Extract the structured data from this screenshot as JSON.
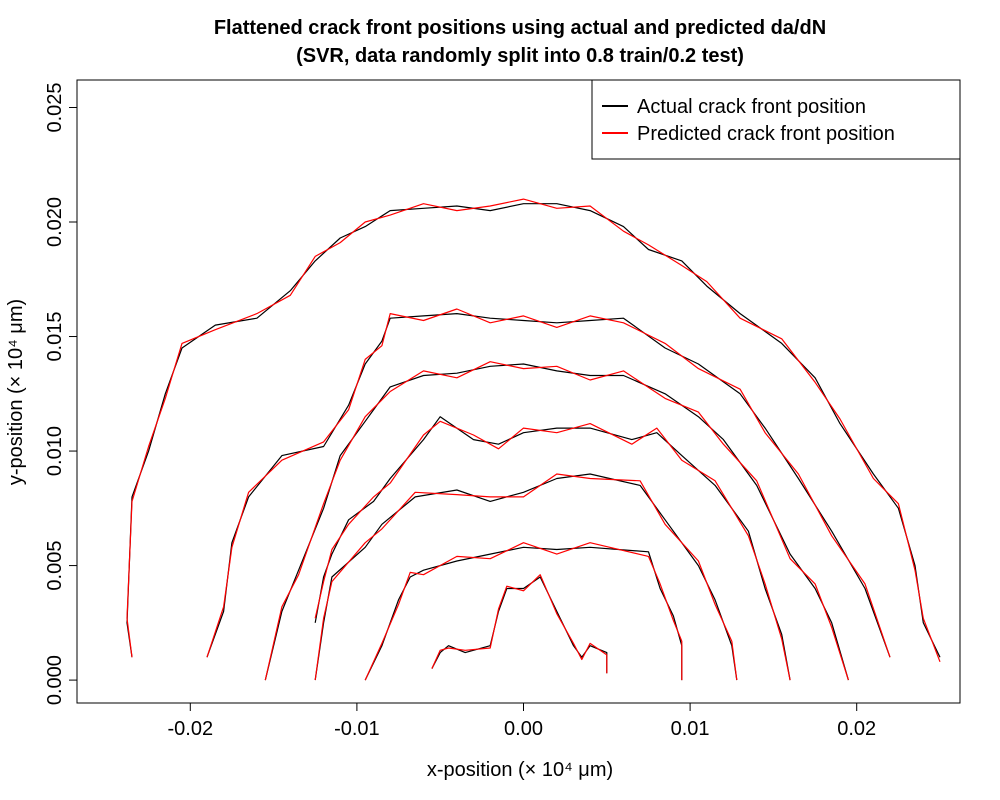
{
  "chart_data": {
    "type": "line",
    "title": "Flattened crack front positions using actual and predicted da/dN",
    "subtitle": "(SVR, data randomly split into 0.8 train/0.2 test)",
    "xlabel": "x-position (× 10⁴ μm)",
    "ylabel": "y-position (× 10⁴ μm)",
    "xlim": [
      -0.0268,
      0.0262
    ],
    "ylim": [
      -0.001,
      0.0262
    ],
    "xticks": [
      -0.02,
      -0.01,
      0.0,
      0.01,
      0.02
    ],
    "xtick_labels": [
      "-0.02",
      "-0.01",
      "0.00",
      "0.01",
      "0.02"
    ],
    "yticks": [
      0.0,
      0.005,
      0.01,
      0.015,
      0.02,
      0.025
    ],
    "ytick_labels": [
      "0.000",
      "0.005",
      "0.010",
      "0.015",
      "0.020",
      "0.025"
    ],
    "grid": false,
    "legend_position": "top-right",
    "series": [
      {
        "name": "Actual crack front position",
        "color": "#000000",
        "fronts": [
          {
            "x": [
              -0.0055,
              -0.005,
              -0.0045,
              -0.0035,
              -0.002,
              -0.0015,
              -0.001,
              0.0,
              0.001,
              0.002,
              0.003,
              0.0035,
              0.004,
              0.005,
              0.005
            ],
            "y": [
              0.0005,
              0.0012,
              0.0015,
              0.0012,
              0.0015,
              0.003,
              0.004,
              0.004,
              0.0045,
              0.003,
              0.0015,
              0.001,
              0.0015,
              0.0012,
              0.0003
            ]
          },
          {
            "x": [
              -0.0095,
              -0.0085,
              -0.0075,
              -0.0068,
              -0.006,
              -0.004,
              -0.002,
              0.0,
              0.002,
              0.004,
              0.0075,
              0.0082,
              0.009,
              0.0095,
              0.0095
            ],
            "y": [
              0.0,
              0.0015,
              0.0035,
              0.0045,
              0.0048,
              0.0052,
              0.0055,
              0.0058,
              0.0057,
              0.0058,
              0.0056,
              0.004,
              0.0028,
              0.0015,
              0.0
            ]
          },
          {
            "x": [
              -0.0125,
              -0.012,
              -0.0115,
              -0.0095,
              -0.0085,
              -0.0065,
              -0.004,
              -0.002,
              0.0,
              0.002,
              0.004,
              0.007,
              0.0085,
              0.0105,
              0.0115,
              0.0125,
              0.0128
            ],
            "y": [
              0.0,
              0.0025,
              0.0045,
              0.0058,
              0.0068,
              0.008,
              0.0083,
              0.0078,
              0.0082,
              0.0088,
              0.009,
              0.0085,
              0.007,
              0.005,
              0.0035,
              0.0015,
              0.0
            ]
          },
          {
            "x": [
              -0.0125,
              -0.012,
              -0.0115,
              -0.0105,
              -0.009,
              -0.008,
              -0.006,
              -0.005,
              -0.003,
              -0.0015,
              0.0,
              0.002,
              0.004,
              0.0065,
              0.008,
              0.0095,
              0.0115,
              0.0135,
              0.0145,
              0.0155,
              0.016
            ],
            "y": [
              0.0025,
              0.0045,
              0.0055,
              0.007,
              0.0078,
              0.0088,
              0.0105,
              0.0115,
              0.0105,
              0.0103,
              0.0108,
              0.011,
              0.011,
              0.0105,
              0.0108,
              0.0098,
              0.0085,
              0.0065,
              0.004,
              0.002,
              0.0
            ]
          },
          {
            "x": [
              -0.0155,
              -0.0145,
              -0.0135,
              -0.012,
              -0.011,
              -0.0095,
              -0.008,
              -0.006,
              -0.004,
              -0.002,
              0.0,
              0.002,
              0.004,
              0.006,
              0.0085,
              0.0105,
              0.012,
              0.014,
              0.016,
              0.0175,
              0.0185,
              0.0195
            ],
            "y": [
              0.0,
              0.003,
              0.0048,
              0.0075,
              0.0098,
              0.0113,
              0.0128,
              0.0133,
              0.0134,
              0.0137,
              0.0138,
              0.0135,
              0.0133,
              0.0133,
              0.0125,
              0.0115,
              0.0105,
              0.0085,
              0.0055,
              0.004,
              0.0025,
              0.0
            ]
          },
          {
            "x": [
              -0.019,
              -0.018,
              -0.0175,
              -0.0165,
              -0.0145,
              -0.012,
              -0.0105,
              -0.0095,
              -0.0085,
              -0.008,
              -0.006,
              -0.004,
              -0.002,
              0.0,
              0.002,
              0.004,
              0.006,
              0.0085,
              0.0105,
              0.013,
              0.0145,
              0.0165,
              0.0185,
              0.0205,
              0.022
            ],
            "y": [
              0.001,
              0.003,
              0.006,
              0.008,
              0.0098,
              0.0102,
              0.012,
              0.0138,
              0.0148,
              0.0158,
              0.0159,
              0.016,
              0.0158,
              0.0157,
              0.0156,
              0.0157,
              0.0158,
              0.0145,
              0.0138,
              0.0125,
              0.011,
              0.0088,
              0.0065,
              0.004,
              0.001
            ]
          },
          {
            "x": [
              -0.0235,
              -0.0238,
              -0.0235,
              -0.0225,
              -0.0215,
              -0.0205,
              -0.0185,
              -0.016,
              -0.014,
              -0.0125,
              -0.011,
              -0.0095,
              -0.008,
              -0.006,
              -0.004,
              -0.002,
              0.0,
              0.002,
              0.004,
              0.006,
              0.0075,
              0.0095,
              0.011,
              0.013,
              0.0155,
              0.0175,
              0.019,
              0.021,
              0.0225,
              0.0235,
              0.024,
              0.025
            ],
            "y": [
              0.001,
              0.0025,
              0.008,
              0.01,
              0.0125,
              0.0145,
              0.0155,
              0.0158,
              0.017,
              0.0183,
              0.0193,
              0.0198,
              0.0205,
              0.0206,
              0.0207,
              0.0205,
              0.0208,
              0.0208,
              0.0205,
              0.0198,
              0.0188,
              0.0183,
              0.0172,
              0.016,
              0.0147,
              0.0132,
              0.0112,
              0.009,
              0.0075,
              0.005,
              0.0025,
              0.001
            ]
          }
        ]
      },
      {
        "name": "Predicted crack front position",
        "color": "#ff0000",
        "fronts": [
          {
            "x": [
              -0.0055,
              -0.005,
              -0.0045,
              -0.0035,
              -0.002,
              -0.0015,
              -0.001,
              0.0,
              0.001,
              0.002,
              0.003,
              0.0035,
              0.004,
              0.005,
              0.005
            ],
            "y": [
              0.0005,
              0.0013,
              0.0014,
              0.0013,
              0.0014,
              0.0031,
              0.0041,
              0.0039,
              0.0046,
              0.0029,
              0.0016,
              0.0009,
              0.0016,
              0.0011,
              0.0003
            ]
          },
          {
            "x": [
              -0.0095,
              -0.0085,
              -0.0075,
              -0.0068,
              -0.006,
              -0.004,
              -0.002,
              0.0,
              0.002,
              0.004,
              0.0075,
              0.0082,
              0.009,
              0.0095,
              0.0095
            ],
            "y": [
              0.0,
              0.0016,
              0.0033,
              0.0047,
              0.0046,
              0.0054,
              0.0053,
              0.006,
              0.0055,
              0.006,
              0.0054,
              0.0042,
              0.0026,
              0.0017,
              0.0
            ]
          },
          {
            "x": [
              -0.0125,
              -0.012,
              -0.0115,
              -0.0095,
              -0.0085,
              -0.0065,
              -0.004,
              -0.002,
              0.0,
              0.002,
              0.004,
              0.007,
              0.0085,
              0.0105,
              0.0115,
              0.0125,
              0.0128
            ],
            "y": [
              0.0,
              0.0027,
              0.0043,
              0.006,
              0.0066,
              0.0082,
              0.0081,
              0.008,
              0.008,
              0.009,
              0.0088,
              0.0087,
              0.0068,
              0.0052,
              0.0033,
              0.0017,
              0.0
            ]
          },
          {
            "x": [
              -0.0125,
              -0.012,
              -0.0115,
              -0.0105,
              -0.009,
              -0.008,
              -0.006,
              -0.005,
              -0.003,
              -0.0015,
              0.0,
              0.002,
              0.004,
              0.0065,
              0.008,
              0.0095,
              0.0115,
              0.0135,
              0.0145,
              0.0155,
              0.016
            ],
            "y": [
              0.0027,
              0.0043,
              0.0057,
              0.0068,
              0.008,
              0.0086,
              0.0107,
              0.0113,
              0.0107,
              0.0101,
              0.011,
              0.0108,
              0.0112,
              0.0103,
              0.011,
              0.0096,
              0.0087,
              0.0063,
              0.0042,
              0.0018,
              0.0
            ]
          },
          {
            "x": [
              -0.0155,
              -0.0145,
              -0.0135,
              -0.012,
              -0.011,
              -0.0095,
              -0.008,
              -0.006,
              -0.004,
              -0.002,
              0.0,
              0.002,
              0.004,
              0.006,
              0.0085,
              0.0105,
              0.012,
              0.014,
              0.016,
              0.0175,
              0.0185,
              0.0195
            ],
            "y": [
              0.0,
              0.0032,
              0.0046,
              0.0077,
              0.0096,
              0.0115,
              0.0126,
              0.0135,
              0.0132,
              0.0139,
              0.0136,
              0.0137,
              0.0131,
              0.0135,
              0.0123,
              0.0117,
              0.0103,
              0.0087,
              0.0053,
              0.0042,
              0.0023,
              0.0
            ]
          },
          {
            "x": [
              -0.019,
              -0.018,
              -0.0175,
              -0.0165,
              -0.0145,
              -0.012,
              -0.0105,
              -0.0095,
              -0.0085,
              -0.008,
              -0.006,
              -0.004,
              -0.002,
              0.0,
              0.002,
              0.004,
              0.006,
              0.0085,
              0.0105,
              0.013,
              0.0145,
              0.0165,
              0.0185,
              0.0205,
              0.022
            ],
            "y": [
              0.001,
              0.0032,
              0.0058,
              0.0082,
              0.0096,
              0.0104,
              0.0118,
              0.014,
              0.0146,
              0.016,
              0.0157,
              0.0162,
              0.0156,
              0.0159,
              0.0154,
              0.0159,
              0.0156,
              0.0147,
              0.0136,
              0.0127,
              0.0108,
              0.009,
              0.0063,
              0.0042,
              0.001
            ]
          },
          {
            "x": [
              -0.0235,
              -0.0238,
              -0.0235,
              -0.0225,
              -0.0215,
              -0.0205,
              -0.0185,
              -0.016,
              -0.014,
              -0.0125,
              -0.011,
              -0.0095,
              -0.008,
              -0.006,
              -0.004,
              -0.002,
              0.0,
              0.002,
              0.004,
              0.006,
              0.0075,
              0.0095,
              0.011,
              0.013,
              0.0155,
              0.0175,
              0.019,
              0.021,
              0.0225,
              0.0235,
              0.024,
              0.025
            ],
            "y": [
              0.001,
              0.0027,
              0.0078,
              0.0102,
              0.0123,
              0.0147,
              0.0153,
              0.016,
              0.0168,
              0.0185,
              0.0191,
              0.02,
              0.0203,
              0.0208,
              0.0205,
              0.0207,
              0.021,
              0.0206,
              0.0207,
              0.0196,
              0.019,
              0.0181,
              0.0174,
              0.0158,
              0.0149,
              0.013,
              0.0114,
              0.0088,
              0.0077,
              0.0048,
              0.0027,
              0.0008
            ]
          }
        ]
      }
    ]
  }
}
